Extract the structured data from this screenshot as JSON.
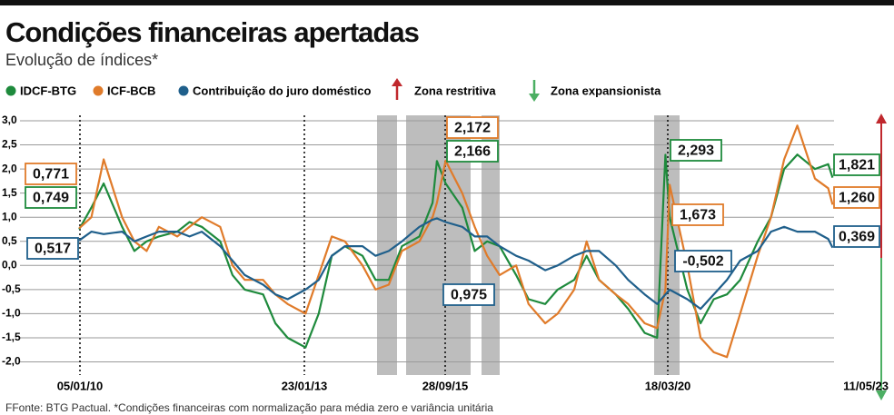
{
  "chart_data": {
    "type": "line",
    "title": "Condições financeiras apertadas",
    "subtitle": "Evolução de índices*",
    "footer": "FFonte: BTG Pactual. *Condições financeiras com normalização para média zero e variância unitária",
    "legend_zones": [
      "Zona restritiva",
      "Zona expansionista"
    ],
    "x": [
      "2010-01",
      "2010-03",
      "2010-05",
      "2010-08",
      "2010-10",
      "2010-12",
      "2011-02",
      "2011-05",
      "2011-07",
      "2011-09",
      "2011-12",
      "2012-02",
      "2012-04",
      "2012-07",
      "2012-09",
      "2012-11",
      "2013-02",
      "2013-05",
      "2013-08",
      "2013-11",
      "2014-03",
      "2014-06",
      "2014-09",
      "2014-12",
      "2015-04",
      "2015-07",
      "2015-08",
      "2015-10",
      "2016-02",
      "2016-05",
      "2016-08",
      "2016-11",
      "2017-03",
      "2017-06",
      "2017-10",
      "2018-01",
      "2018-05",
      "2018-08",
      "2018-11",
      "2019-03",
      "2019-06",
      "2019-10",
      "2020-01",
      "2020-03",
      "2020-04",
      "2020-08",
      "2020-11",
      "2021-02",
      "2021-05",
      "2021-08",
      "2021-12",
      "2022-03",
      "2022-06",
      "2022-09",
      "2023-01",
      "2023-04",
      "2023-05"
    ],
    "series": [
      {
        "name": "IDCF-BTG",
        "color": "#1e8a3c",
        "values": [
          0.749,
          1.2,
          1.7,
          0.8,
          0.3,
          0.5,
          0.6,
          0.7,
          0.9,
          0.8,
          0.5,
          -0.2,
          -0.5,
          -0.6,
          -1.2,
          -1.5,
          -1.7,
          -1.0,
          0.2,
          0.4,
          0.2,
          -0.3,
          -0.3,
          0.4,
          0.6,
          1.3,
          2.166,
          1.7,
          1.2,
          0.3,
          0.5,
          0.4,
          -0.2,
          -0.7,
          -0.8,
          -0.5,
          -0.3,
          0.2,
          -0.3,
          -0.6,
          -0.9,
          -1.4,
          -1.5,
          2.293,
          1.0,
          -0.5,
          -1.2,
          -0.7,
          -0.6,
          -0.3,
          0.5,
          1.0,
          2.0,
          2.3,
          2.0,
          2.1,
          1.821
        ]
      },
      {
        "name": "ICF-BCB",
        "color": "#e07b2a",
        "values": [
          0.771,
          1.0,
          2.2,
          1.0,
          0.5,
          0.3,
          0.8,
          0.6,
          0.8,
          1.0,
          0.8,
          0.0,
          -0.3,
          -0.3,
          -0.6,
          -0.8,
          -1.0,
          -0.2,
          0.6,
          0.5,
          0.0,
          -0.5,
          -0.4,
          0.3,
          0.5,
          1.0,
          1.3,
          2.172,
          1.5,
          0.8,
          0.2,
          -0.2,
          0.0,
          -0.8,
          -1.2,
          -1.0,
          -0.5,
          0.5,
          -0.3,
          -0.6,
          -0.8,
          -1.2,
          -1.3,
          -0.5,
          1.673,
          0.0,
          -1.5,
          -1.8,
          -1.9,
          -1.0,
          0.2,
          1.0,
          2.2,
          2.9,
          1.8,
          1.6,
          1.26
        ]
      },
      {
        "name": "Contribuição do juro doméstico",
        "color": "#1f5f8b",
        "values": [
          0.517,
          0.7,
          0.65,
          0.7,
          0.5,
          0.6,
          0.7,
          0.7,
          0.6,
          0.7,
          0.4,
          0.1,
          -0.2,
          -0.4,
          -0.6,
          -0.7,
          -0.5,
          -0.3,
          0.2,
          0.4,
          0.4,
          0.2,
          0.3,
          0.5,
          0.8,
          0.95,
          0.975,
          0.9,
          0.8,
          0.6,
          0.6,
          0.4,
          0.2,
          0.1,
          -0.1,
          0.0,
          0.2,
          0.3,
          0.3,
          0.0,
          -0.3,
          -0.6,
          -0.8,
          -0.6,
          -0.502,
          -0.7,
          -0.9,
          -0.6,
          -0.3,
          0.1,
          0.3,
          0.7,
          0.8,
          0.7,
          0.7,
          0.55,
          0.369
        ]
      }
    ],
    "annotations": [
      "0,771",
      "0,749",
      "0,517",
      "2,172",
      "2,166",
      "0,975",
      "2,293",
      "1,673",
      "-0,502",
      "1,821",
      "1,260",
      "0,369"
    ],
    "ylim": [
      -2.2,
      3.2
    ],
    "yticks": [
      {
        "value": 3,
        "label": "3,0"
      },
      {
        "value": 2.5,
        "label": "2,5"
      },
      {
        "value": 2,
        "label": "2,0"
      },
      {
        "value": 1.5,
        "label": "1,5"
      },
      {
        "value": 1,
        "label": "1,0"
      },
      {
        "value": 0.5,
        "label": "0,5"
      },
      {
        "value": 0,
        "label": "0,0"
      },
      {
        "value": -0.5,
        "label": "-0,5"
      },
      {
        "value": -1,
        "label": "-1,0"
      },
      {
        "value": -1.5,
        "label": "-1,5"
      },
      {
        "value": -2,
        "label": "-2,0"
      }
    ],
    "xticks": [
      {
        "value": "2010-01-05",
        "label": "05/01/10"
      },
      {
        "value": "2013-01-23",
        "label": "23/01/13"
      },
      {
        "value": "2015-09-28",
        "label": "28/09/15"
      },
      {
        "value": "2020-03-18",
        "label": "18/03/20"
      },
      {
        "value": "2023-05-11",
        "label": "11/05/23"
      }
    ],
    "grid": true
  }
}
